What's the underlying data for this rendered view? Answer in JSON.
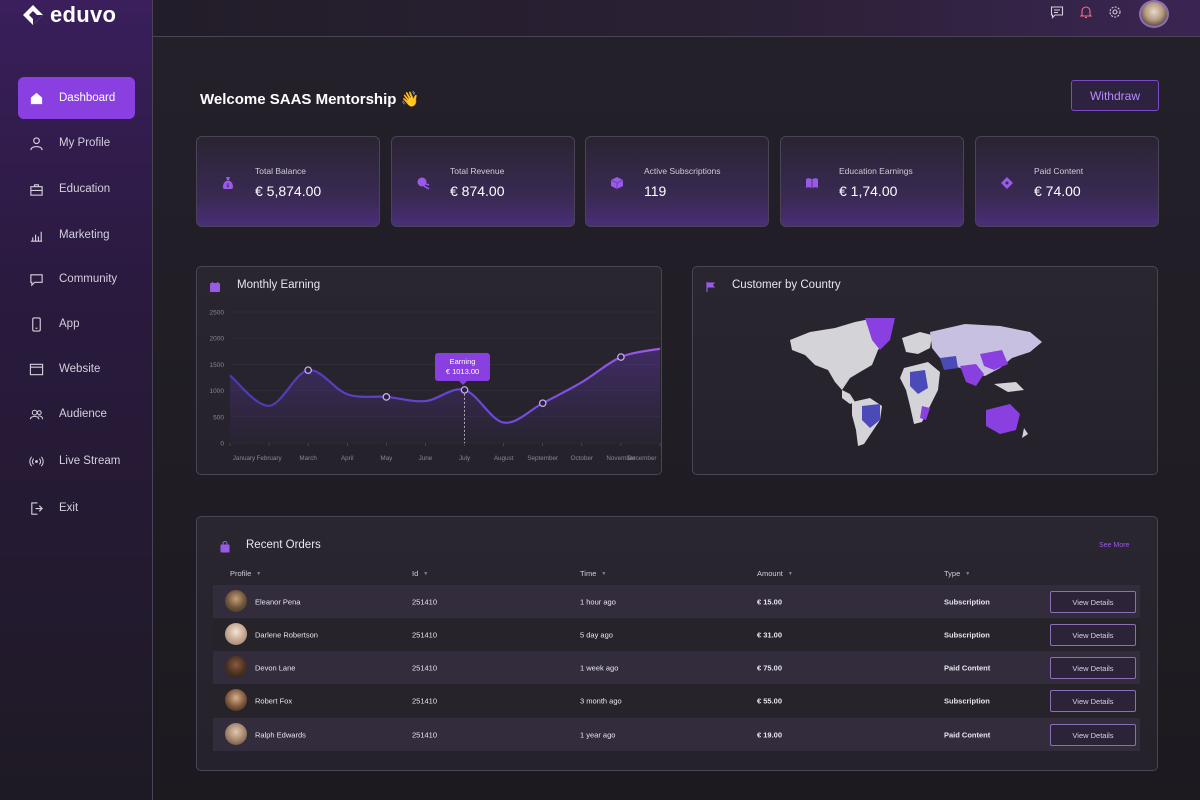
{
  "app": {
    "name": "eduvo"
  },
  "sidebar": {
    "items": [
      {
        "label": "Dashboard",
        "icon": "home-icon"
      },
      {
        "label": "My Profile",
        "icon": "user-icon"
      },
      {
        "label": "Education",
        "icon": "briefcase-icon"
      },
      {
        "label": "Marketing",
        "icon": "chart-icon"
      },
      {
        "label": "Community",
        "icon": "chat-icon"
      },
      {
        "label": "App",
        "icon": "phone-icon"
      },
      {
        "label": "Website",
        "icon": "browser-icon"
      },
      {
        "label": "Audience",
        "icon": "users-icon"
      },
      {
        "label": "Live Stream",
        "icon": "broadcast-icon"
      },
      {
        "label": "Exit",
        "icon": "logout-icon"
      }
    ]
  },
  "header": {
    "icons": [
      "message-icon",
      "bell-icon",
      "gear-icon"
    ]
  },
  "welcome": "Welcome SAAS Mentorship 👋",
  "withdraw_label": "Withdraw",
  "stats": [
    {
      "label": "Total Balance",
      "value": "€ 5,874.00",
      "icon": "money-bag-icon"
    },
    {
      "label": "Total Revenue",
      "value": "€ 874.00",
      "icon": "revenue-icon"
    },
    {
      "label": "Active Subscriptions",
      "value": "119",
      "icon": "cube-icon"
    },
    {
      "label": "Education Earnings",
      "value": "€ 1,74.00",
      "icon": "book-icon"
    },
    {
      "label": "Paid Content",
      "value": "€ 74.00",
      "icon": "ticket-icon"
    }
  ],
  "earning_panel": {
    "title": "Monthly Earning"
  },
  "country_panel": {
    "title": "Customer by Country"
  },
  "chart_data": {
    "type": "line",
    "title": "Monthly Earning",
    "categories": [
      "January",
      "February",
      "March",
      "April",
      "May",
      "June",
      "July",
      "August",
      "September",
      "October",
      "November",
      "December"
    ],
    "yticks": [
      "2500",
      "2000",
      "1500",
      "1000",
      "500",
      "0"
    ],
    "ylim": [
      0,
      2500
    ],
    "series": [
      {
        "values": [
          1290,
          710,
          1390,
          930,
          880,
          800,
          1013,
          390,
          760,
          1160,
          1640,
          1800
        ]
      }
    ],
    "tooltip": {
      "label": "Earning",
      "value": "€ 1013.00"
    }
  },
  "orders": {
    "title": "Recent Orders",
    "see_more": "See More",
    "columns": [
      "Profile",
      "Id",
      "Time",
      "Amount",
      "Type"
    ],
    "view_label": "View Details",
    "rows": [
      {
        "name": "Eleanor Pena",
        "id": "251410",
        "time": "1 hour ago",
        "amount": "€ 15.00",
        "type": "Subscription"
      },
      {
        "name": "Darlene Robertson",
        "id": "251410",
        "time": "5 day ago",
        "amount": "€ 31.00",
        "type": "Subscription"
      },
      {
        "name": "Devon Lane",
        "id": "251410",
        "time": "1 week ago",
        "amount": "€ 75.00",
        "type": "Paid Content"
      },
      {
        "name": "Robert Fox",
        "id": "251410",
        "time": "3 month ago",
        "amount": "€ 55.00",
        "type": "Subscription"
      },
      {
        "name": "Ralph Edwards",
        "id": "251410",
        "time": "1 year ago",
        "amount": "€ 19.00",
        "type": "Paid Content"
      }
    ]
  },
  "colors": {
    "accent": "#8a40e0",
    "background": "#1c1a1f",
    "panel_border": "#4a4456"
  }
}
